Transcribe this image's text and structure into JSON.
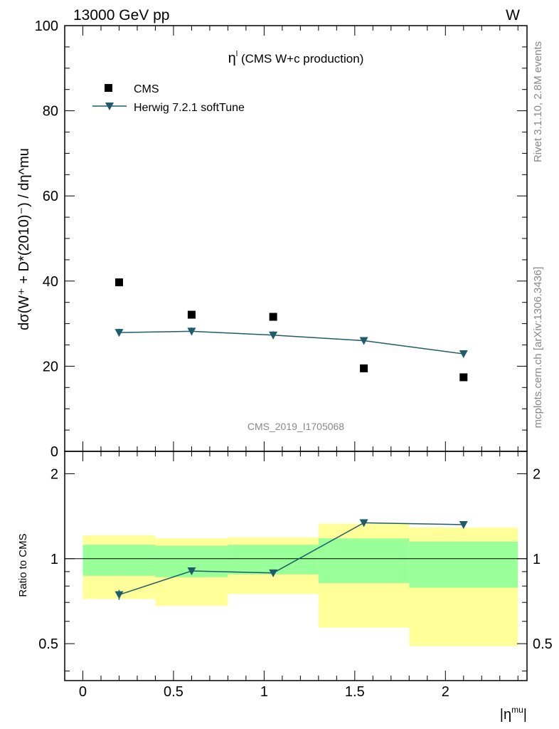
{
  "header": {
    "energy_label": "13000 GeV pp",
    "process_label": "W"
  },
  "side_labels": {
    "rivet": "Rivet 3.1.10,  2.8M events",
    "source": "mcplots.cern.ch [arXiv:1306.3436]"
  },
  "watermark": "CMS_2019_I1705068",
  "chart_data": [
    {
      "type": "scatter",
      "title_sym": "η",
      "title_sup": "l",
      "title_rest": " (CMS W+c production)",
      "ylabel": "dσ(W⁺ + D*(2010)⁻) / dη^mu",
      "ylim": [
        0,
        100
      ],
      "yticks": [
        0,
        20,
        40,
        60,
        80,
        100
      ],
      "ytick_labels": [
        "0",
        "20",
        "40",
        "60",
        "80",
        "100"
      ],
      "legend": {
        "placement": "top-left",
        "entries": [
          {
            "label": "CMS",
            "marker": "square"
          },
          {
            "label": "Herwig 7.2.1 softTune",
            "marker": "triangle-down"
          }
        ]
      },
      "series": [
        {
          "name": "CMS",
          "color": "#000000",
          "x": [
            0.2,
            0.6,
            1.05,
            1.55,
            2.1
          ],
          "values": [
            39.7,
            32.1,
            31.6,
            19.5,
            17.4
          ]
        },
        {
          "name": "Herwig 7.2.1 softTune",
          "color": "#1f5c6b",
          "x": [
            0.2,
            0.6,
            1.05,
            1.55,
            2.1
          ],
          "values": [
            27.9,
            28.2,
            27.3,
            26.0,
            22.9
          ],
          "errors": [
            0.9,
            0.9,
            0.9,
            0.8,
            0.6
          ]
        }
      ]
    },
    {
      "type": "ratio",
      "ylabel": "Ratio to CMS",
      "xlabel_sym": "|η",
      "xlabel_sup": "mu",
      "xlabel_end": "|",
      "xlim": [
        -0.1,
        2.45
      ],
      "ylim": [
        0.37,
        2.4
      ],
      "xticks": [
        0,
        0.5,
        1,
        1.5,
        2
      ],
      "xtick_labels": [
        "0",
        "0.5",
        "1",
        "1.5",
        "2"
      ],
      "yticks": [
        0.5,
        1,
        2
      ],
      "ytick_labels": [
        "0.5",
        "1",
        "2"
      ],
      "bands": [
        {
          "x0": 0.0,
          "x1": 0.4,
          "inner": [
            0.87,
            1.12
          ],
          "outer": [
            0.72,
            1.21
          ]
        },
        {
          "x0": 0.4,
          "x1": 0.8,
          "inner": [
            0.86,
            1.11
          ],
          "outer": [
            0.68,
            1.18
          ]
        },
        {
          "x0": 0.8,
          "x1": 1.3,
          "inner": [
            0.88,
            1.12
          ],
          "outer": [
            0.75,
            1.19
          ]
        },
        {
          "x0": 1.3,
          "x1": 1.8,
          "inner": [
            0.82,
            1.18
          ],
          "outer": [
            0.57,
            1.33
          ]
        },
        {
          "x0": 1.8,
          "x1": 2.4,
          "inner": [
            0.79,
            1.15
          ],
          "outer": [
            0.49,
            1.29
          ]
        }
      ],
      "ratio": {
        "x": [
          0.2,
          0.6,
          1.05,
          1.55,
          2.1
        ],
        "values": [
          0.745,
          0.905,
          0.89,
          1.34,
          1.32
        ],
        "errors": [
          0.03,
          0.025,
          0.025,
          0.03,
          0.03
        ]
      }
    }
  ],
  "colors": {
    "inner_band": "#99ff99",
    "outer_band": "#ffff99",
    "mc_line": "#1f5c6b",
    "data_marker": "#000000",
    "label_grey": "#888888"
  }
}
